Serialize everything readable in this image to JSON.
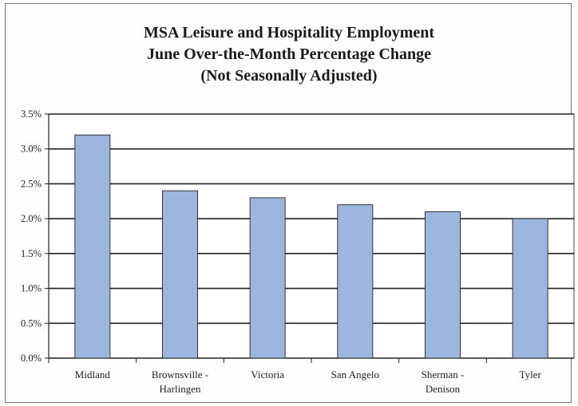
{
  "chart_data": {
    "type": "bar",
    "title_lines": [
      "MSA Leisure and Hospitality Employment",
      "June Over-the-Month Percentage Change",
      "(Not Seasonally Adjusted)"
    ],
    "categories": [
      [
        "Midland"
      ],
      [
        "Brownsville -",
        "Harlingen"
      ],
      [
        "Victoria"
      ],
      [
        "San Angelo"
      ],
      [
        "Sherman -",
        "Denison"
      ],
      [
        "Tyler"
      ]
    ],
    "values": [
      3.2,
      2.4,
      2.3,
      2.2,
      2.1,
      2.0
    ],
    "ylim": [
      0,
      3.5
    ],
    "yticks": [
      "0.0%",
      "0.5%",
      "1.0%",
      "1.5%",
      "2.0%",
      "2.5%",
      "3.0%",
      "3.5%"
    ],
    "grid": true,
    "bar_color": "#9db6dd",
    "bar_border": "#333333"
  }
}
